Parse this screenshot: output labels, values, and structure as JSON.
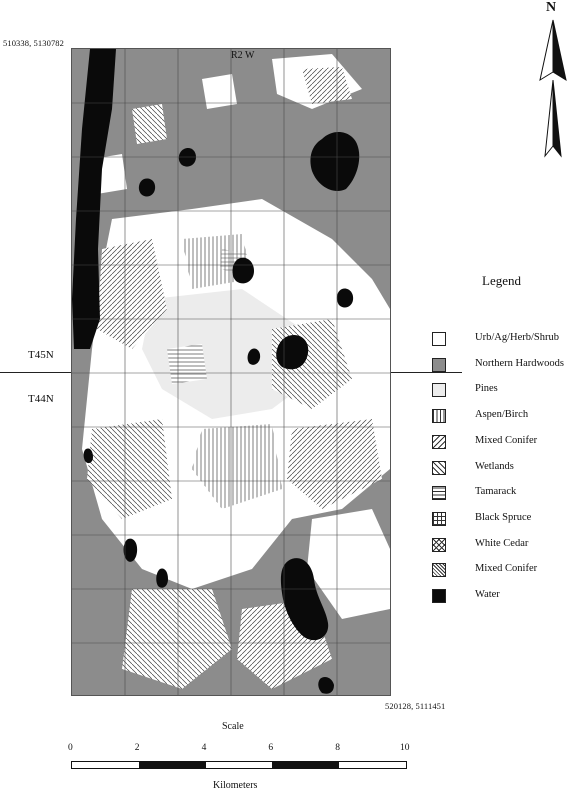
{
  "map": {
    "corner_top_left": "510338, 5130782",
    "corner_bottom_right": "520128, 5111451",
    "range_label": "R2 W",
    "township_north": "T45N",
    "township_south": "T44N"
  },
  "north_arrow": {
    "label": "N",
    "icon": "north-arrow-icon"
  },
  "legend": {
    "title": "Legend",
    "items": [
      {
        "label": "Urb/Ag/Herb/Shrub",
        "pattern": "blank",
        "color": "#ffffff"
      },
      {
        "label": "Northern Hardwoods",
        "pattern": "solid",
        "color": "#8c8c8c"
      },
      {
        "label": "Pines",
        "pattern": "solid",
        "color": "#ececec"
      },
      {
        "label": "Aspen/Birch",
        "pattern": "vertical",
        "color": "#ffffff"
      },
      {
        "label": "Mixed Conifer",
        "pattern": "diag-right",
        "color": "#ffffff"
      },
      {
        "label": "Wetlands",
        "pattern": "diag-left",
        "color": "#ffffff"
      },
      {
        "label": "Tamarack",
        "pattern": "horizontal",
        "color": "#ffffff"
      },
      {
        "label": "Black Spruce",
        "pattern": "grid",
        "color": "#ffffff"
      },
      {
        "label": "White Cedar",
        "pattern": "crosshatch",
        "color": "#ffffff"
      },
      {
        "label": "Mixed Conifer",
        "pattern": "dense-diag-left",
        "color": "#ffffff"
      },
      {
        "label": "Water",
        "pattern": "solid",
        "color": "#0a0a0a"
      }
    ]
  },
  "scale": {
    "title": "Scale",
    "unit_label": "Kilometers",
    "ticks": [
      "0",
      "2",
      "4",
      "6",
      "8",
      "10"
    ],
    "max_km": 10
  },
  "colors": {
    "hardwoods": "#8c8c8c",
    "pines": "#ececec",
    "water": "#0a0a0a",
    "open": "#ffffff",
    "grid": "#4a4a4a"
  }
}
